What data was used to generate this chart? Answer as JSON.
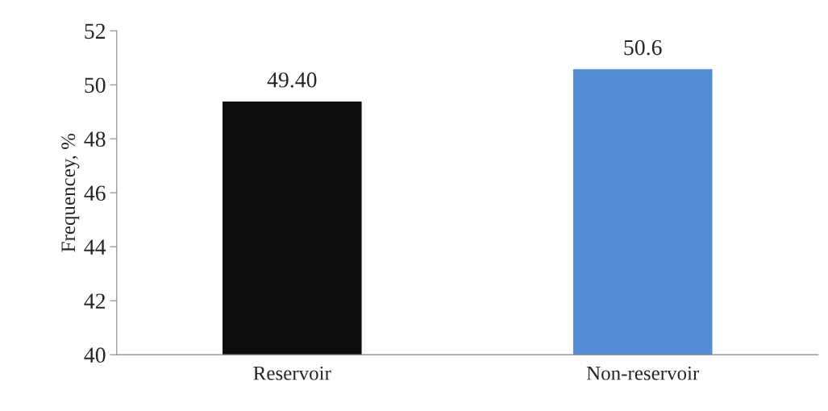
{
  "chart_data": {
    "type": "bar",
    "ylabel": "Frequencey, %",
    "categories": [
      "Reservoir",
      "Non-reservoir"
    ],
    "values": [
      49.4,
      50.6
    ],
    "colors": [
      "#0d0d0d",
      "#558ed5"
    ],
    "value_labels": [
      "49.40",
      "50.6"
    ],
    "ylim": [
      40,
      52
    ],
    "yticks": [
      40,
      42,
      44,
      46,
      48,
      50,
      52
    ],
    "grid": false,
    "legend": false
  }
}
